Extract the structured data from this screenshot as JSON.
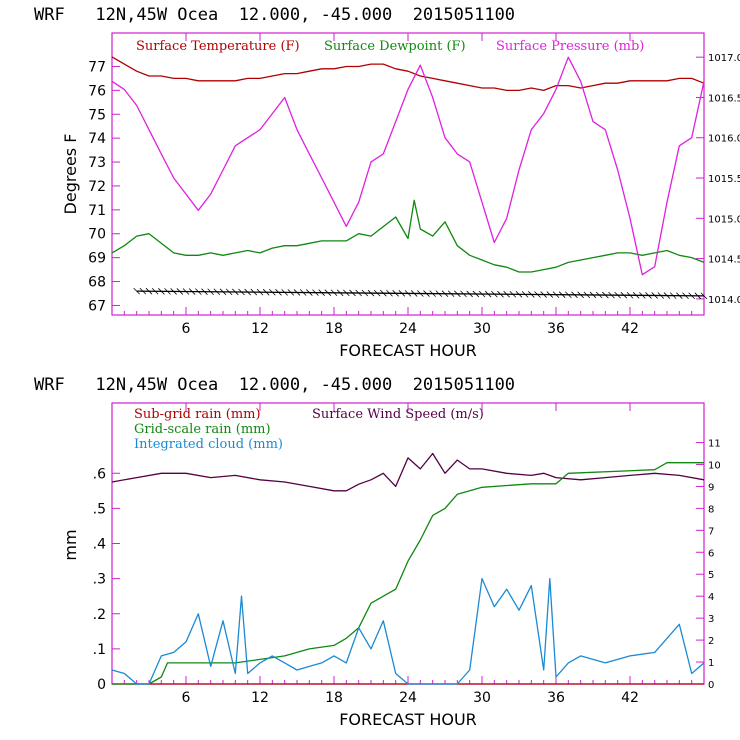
{
  "chart_data": [
    {
      "type": "line",
      "title": "WRF   12N,45W Ocea  12.000, -45.000  2015051100",
      "xlabel": "FORECAST HOUR",
      "ylabel": "Degrees F",
      "x_ticks": [
        6,
        12,
        18,
        24,
        30,
        36,
        42
      ],
      "xlim": [
        0,
        48
      ],
      "ylim": [
        66.6,
        78.4
      ],
      "y_ticks": [
        67,
        68,
        69,
        70,
        71,
        72,
        73,
        74,
        75,
        76,
        77
      ],
      "y2lim": [
        1013.8,
        1017.3
      ],
      "y2_ticks": [
        1014.0,
        1014.5,
        1015.0,
        1015.5,
        1016.0,
        1016.5,
        1017.0
      ],
      "y2_tick_labels": [
        "1014.0",
        "1014.5",
        "1015.0",
        "1015.5",
        "1016.0",
        "1016.5",
        "1017.0"
      ],
      "series": [
        {
          "name": "Surface Temperature (F)",
          "color": "#b00000",
          "axis": "left",
          "points": [
            [
              0,
              77.4
            ],
            [
              1,
              77.1
            ],
            [
              2,
              76.8
            ],
            [
              3,
              76.6
            ],
            [
              4,
              76.6
            ],
            [
              5,
              76.5
            ],
            [
              6,
              76.5
            ],
            [
              7,
              76.4
            ],
            [
              8,
              76.4
            ],
            [
              9,
              76.4
            ],
            [
              10,
              76.4
            ],
            [
              11,
              76.5
            ],
            [
              12,
              76.5
            ],
            [
              13,
              76.6
            ],
            [
              14,
              76.7
            ],
            [
              15,
              76.7
            ],
            [
              16,
              76.8
            ],
            [
              17,
              76.9
            ],
            [
              18,
              76.9
            ],
            [
              19,
              77.0
            ],
            [
              20,
              77.0
            ],
            [
              21,
              77.1
            ],
            [
              22,
              77.1
            ],
            [
              23,
              76.9
            ],
            [
              24,
              76.8
            ],
            [
              25,
              76.6
            ],
            [
              26,
              76.5
            ],
            [
              27,
              76.4
            ],
            [
              28,
              76.3
            ],
            [
              29,
              76.2
            ],
            [
              30,
              76.1
            ],
            [
              31,
              76.1
            ],
            [
              32,
              76.0
            ],
            [
              33,
              76.0
            ],
            [
              34,
              76.1
            ],
            [
              35,
              76.0
            ],
            [
              36,
              76.2
            ],
            [
              37,
              76.2
            ],
            [
              38,
              76.1
            ],
            [
              39,
              76.2
            ],
            [
              40,
              76.3
            ],
            [
              41,
              76.3
            ],
            [
              42,
              76.4
            ],
            [
              43,
              76.4
            ],
            [
              44,
              76.4
            ],
            [
              45,
              76.4
            ],
            [
              46,
              76.5
            ],
            [
              47,
              76.5
            ],
            [
              48,
              76.3
            ]
          ]
        },
        {
          "name": "Surface Dewpoint (F)",
          "color": "#118811",
          "axis": "left",
          "points": [
            [
              0,
              69.2
            ],
            [
              1,
              69.5
            ],
            [
              2,
              69.9
            ],
            [
              3,
              70.0
            ],
            [
              4,
              69.6
            ],
            [
              5,
              69.2
            ],
            [
              6,
              69.1
            ],
            [
              7,
              69.1
            ],
            [
              8,
              69.2
            ],
            [
              9,
              69.1
            ],
            [
              10,
              69.2
            ],
            [
              11,
              69.3
            ],
            [
              12,
              69.2
            ],
            [
              13,
              69.4
            ],
            [
              14,
              69.5
            ],
            [
              15,
              69.5
            ],
            [
              16,
              69.6
            ],
            [
              17,
              69.7
            ],
            [
              18,
              69.7
            ],
            [
              19,
              69.7
            ],
            [
              20,
              70.0
            ],
            [
              21,
              69.9
            ],
            [
              22,
              70.3
            ],
            [
              23,
              70.7
            ],
            [
              24,
              69.8
            ],
            [
              24.5,
              71.4
            ],
            [
              25,
              70.2
            ],
            [
              26,
              69.9
            ],
            [
              27,
              70.5
            ],
            [
              28,
              69.5
            ],
            [
              29,
              69.1
            ],
            [
              30,
              68.9
            ],
            [
              31,
              68.7
            ],
            [
              32,
              68.6
            ],
            [
              33,
              68.4
            ],
            [
              34,
              68.4
            ],
            [
              35,
              68.5
            ],
            [
              36,
              68.6
            ],
            [
              37,
              68.8
            ],
            [
              38,
              68.9
            ],
            [
              39,
              69.0
            ],
            [
              40,
              69.1
            ],
            [
              41,
              69.2
            ],
            [
              42,
              69.2
            ],
            [
              43,
              69.1
            ],
            [
              44,
              69.2
            ],
            [
              45,
              69.3
            ],
            [
              46,
              69.1
            ],
            [
              47,
              69.0
            ],
            [
              48,
              68.8
            ]
          ]
        },
        {
          "name": "Surface Pressure (mb)",
          "color": "#e020e0",
          "axis": "right",
          "points": [
            [
              0,
              1016.7
            ],
            [
              1,
              1016.6
            ],
            [
              2,
              1016.4
            ],
            [
              3,
              1016.1
            ],
            [
              4,
              1015.8
            ],
            [
              5,
              1015.5
            ],
            [
              6,
              1015.3
            ],
            [
              7,
              1015.1
            ],
            [
              8,
              1015.3
            ],
            [
              9,
              1015.6
            ],
            [
              10,
              1015.9
            ],
            [
              11,
              1016.0
            ],
            [
              12,
              1016.1
            ],
            [
              13,
              1016.3
            ],
            [
              14,
              1016.5
            ],
            [
              15,
              1016.1
            ],
            [
              16,
              1015.8
            ],
            [
              17,
              1015.5
            ],
            [
              18,
              1015.2
            ],
            [
              19,
              1014.9
            ],
            [
              20,
              1015.2
            ],
            [
              21,
              1015.7
            ],
            [
              22,
              1015.8
            ],
            [
              23,
              1016.2
            ],
            [
              24,
              1016.6
            ],
            [
              25,
              1016.9
            ],
            [
              26,
              1016.5
            ],
            [
              27,
              1016.0
            ],
            [
              28,
              1015.8
            ],
            [
              29,
              1015.7
            ],
            [
              30,
              1015.2
            ],
            [
              31,
              1014.7
            ],
            [
              32,
              1015.0
            ],
            [
              33,
              1015.6
            ],
            [
              34,
              1016.1
            ],
            [
              35,
              1016.3
            ],
            [
              36,
              1016.6
            ],
            [
              37,
              1017.0
            ],
            [
              38,
              1016.7
            ],
            [
              39,
              1016.2
            ],
            [
              40,
              1016.1
            ],
            [
              41,
              1015.6
            ],
            [
              42,
              1015.0
            ],
            [
              43,
              1014.3
            ],
            [
              44,
              1014.4
            ],
            [
              45,
              1015.2
            ],
            [
              46,
              1015.9
            ],
            [
              47,
              1016.0
            ],
            [
              48,
              1016.7
            ]
          ]
        },
        {
          "name": "",
          "color": "#000000",
          "axis": "left",
          "style": "hatched",
          "points": [
            [
              2,
              67.6
            ],
            [
              48,
              67.4
            ]
          ]
        }
      ]
    },
    {
      "type": "line",
      "title": "WRF   12N,45W Ocea  12.000, -45.000  2015051100",
      "xlabel": "FORECAST HOUR",
      "ylabel": "mm",
      "x_ticks": [
        6,
        12,
        18,
        24,
        30,
        36,
        42
      ],
      "xlim": [
        0,
        48
      ],
      "ylim": [
        0,
        0.8
      ],
      "y_ticks": [
        0,
        0.1,
        0.2,
        0.3,
        0.4,
        0.5,
        0.6
      ],
      "y_tick_labels": [
        "0",
        ".1",
        ".2",
        ".3",
        ".4",
        ".5",
        ".6"
      ],
      "y2lim": [
        0,
        12.8
      ],
      "y2_ticks": [
        0,
        1,
        2,
        3,
        4,
        5,
        6,
        7,
        8,
        9,
        10,
        11
      ],
      "series": [
        {
          "name": "Sub-grid rain (mm)",
          "color": "#b00000",
          "axis": "left",
          "points": [
            [
              0,
              0
            ],
            [
              48,
              0
            ]
          ]
        },
        {
          "name": "Surface Wind Speed (m/s)",
          "color": "#550044",
          "axis": "right",
          "points": [
            [
              0,
              9.2
            ],
            [
              2,
              9.4
            ],
            [
              4,
              9.6
            ],
            [
              6,
              9.6
            ],
            [
              8,
              9.4
            ],
            [
              10,
              9.5
            ],
            [
              12,
              9.3
            ],
            [
              14,
              9.2
            ],
            [
              16,
              9.0
            ],
            [
              18,
              8.8
            ],
            [
              19,
              8.8
            ],
            [
              20,
              9.1
            ],
            [
              21,
              9.3
            ],
            [
              22,
              9.6
            ],
            [
              23,
              9.0
            ],
            [
              24,
              10.3
            ],
            [
              25,
              9.8
            ],
            [
              26,
              10.5
            ],
            [
              27,
              9.6
            ],
            [
              28,
              10.2
            ],
            [
              29,
              9.8
            ],
            [
              30,
              9.8
            ],
            [
              32,
              9.6
            ],
            [
              34,
              9.5
            ],
            [
              35,
              9.6
            ],
            [
              36,
              9.4
            ],
            [
              38,
              9.3
            ],
            [
              40,
              9.4
            ],
            [
              42,
              9.5
            ],
            [
              44,
              9.6
            ],
            [
              46,
              9.5
            ],
            [
              48,
              9.3
            ]
          ]
        },
        {
          "name": "Grid-scale rain (mm)",
          "color": "#118811",
          "axis": "left",
          "points": [
            [
              0,
              0
            ],
            [
              3,
              0
            ],
            [
              4,
              0.02
            ],
            [
              4.5,
              0.06
            ],
            [
              10,
              0.06
            ],
            [
              12,
              0.07
            ],
            [
              14,
              0.08
            ],
            [
              16,
              0.1
            ],
            [
              18,
              0.11
            ],
            [
              19,
              0.13
            ],
            [
              20,
              0.16
            ],
            [
              21,
              0.23
            ],
            [
              22,
              0.25
            ],
            [
              23,
              0.27
            ],
            [
              24,
              0.35
            ],
            [
              25,
              0.41
            ],
            [
              26,
              0.48
            ],
            [
              27,
              0.5
            ],
            [
              28,
              0.54
            ],
            [
              29,
              0.55
            ],
            [
              30,
              0.56
            ],
            [
              34,
              0.57
            ],
            [
              36,
              0.57
            ],
            [
              37,
              0.6
            ],
            [
              44,
              0.61
            ],
            [
              45,
              0.63
            ],
            [
              48,
              0.63
            ]
          ]
        },
        {
          "name": "Integrated cloud (mm)",
          "color": "#1a8ad4",
          "axis": "left",
          "points": [
            [
              0,
              0.04
            ],
            [
              1,
              0.03
            ],
            [
              2,
              0
            ],
            [
              3,
              0
            ],
            [
              4,
              0.08
            ],
            [
              5,
              0.09
            ],
            [
              6,
              0.12
            ],
            [
              7,
              0.2
            ],
            [
              8,
              0.05
            ],
            [
              9,
              0.18
            ],
            [
              10,
              0.03
            ],
            [
              10.5,
              0.25
            ],
            [
              11,
              0.03
            ],
            [
              12,
              0.06
            ],
            [
              13,
              0.08
            ],
            [
              14,
              0.06
            ],
            [
              15,
              0.04
            ],
            [
              16,
              0.05
            ],
            [
              17,
              0.06
            ],
            [
              18,
              0.08
            ],
            [
              19,
              0.06
            ],
            [
              20,
              0.16
            ],
            [
              21,
              0.1
            ],
            [
              22,
              0.18
            ],
            [
              23,
              0.03
            ],
            [
              24,
              0
            ],
            [
              26,
              0
            ],
            [
              28,
              0
            ],
            [
              29,
              0.04
            ],
            [
              30,
              0.3
            ],
            [
              31,
              0.22
            ],
            [
              32,
              0.27
            ],
            [
              33,
              0.21
            ],
            [
              34,
              0.28
            ],
            [
              35,
              0.04
            ],
            [
              35.5,
              0.3
            ],
            [
              36,
              0.02
            ],
            [
              37,
              0.06
            ],
            [
              38,
              0.08
            ],
            [
              40,
              0.06
            ],
            [
              42,
              0.08
            ],
            [
              44,
              0.09
            ],
            [
              46,
              0.17
            ],
            [
              47,
              0.03
            ],
            [
              48,
              0.06
            ]
          ]
        }
      ]
    }
  ]
}
